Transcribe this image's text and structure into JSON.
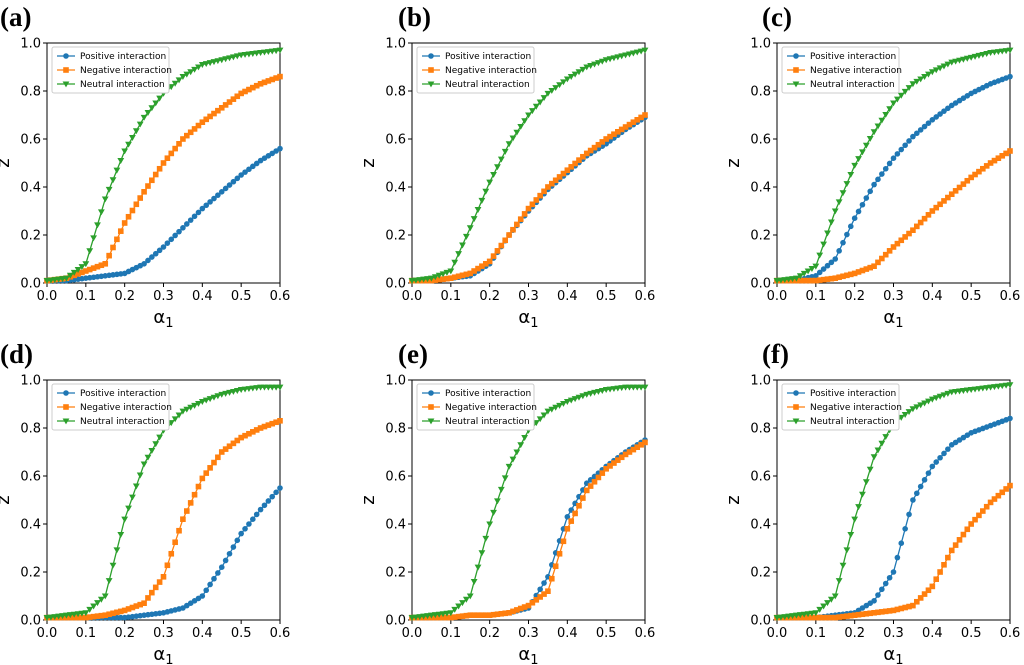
{
  "chart_data": [
    {
      "panel_label": "(a)",
      "type": "line",
      "xlabel_base": "α",
      "xlabel_sub": "1",
      "ylabel": "z",
      "xlim": [
        0,
        0.6
      ],
      "ylim": [
        0,
        1.0
      ],
      "x_ticks": [
        "0.0",
        "0.1",
        "0.2",
        "0.3",
        "0.4",
        "0.5",
        "0.6"
      ],
      "y_ticks": [
        "0.0",
        "0.2",
        "0.4",
        "0.6",
        "0.8",
        "1.0"
      ],
      "legend_position": "upper-left",
      "x": [
        0.0,
        0.05,
        0.1,
        0.15,
        0.2,
        0.25,
        0.3,
        0.35,
        0.4,
        0.45,
        0.5,
        0.55,
        0.6
      ],
      "series": [
        {
          "name": "Positive interaction",
          "color": "#1f77b4",
          "marker": "circle",
          "values": [
            0.01,
            0.01,
            0.02,
            0.03,
            0.04,
            0.08,
            0.15,
            0.23,
            0.31,
            0.38,
            0.45,
            0.51,
            0.56
          ]
        },
        {
          "name": "Negative interaction",
          "color": "#ff7f0e",
          "marker": "square",
          "values": [
            0.01,
            0.02,
            0.05,
            0.08,
            0.25,
            0.38,
            0.5,
            0.6,
            0.67,
            0.73,
            0.79,
            0.83,
            0.86
          ]
        },
        {
          "name": "Neutral interaction",
          "color": "#2ca02c",
          "marker": "triangle-down",
          "values": [
            0.01,
            0.02,
            0.08,
            0.35,
            0.55,
            0.69,
            0.79,
            0.86,
            0.91,
            0.93,
            0.95,
            0.96,
            0.97
          ]
        }
      ]
    },
    {
      "panel_label": "(b)",
      "type": "line",
      "xlabel_base": "α",
      "xlabel_sub": "1",
      "ylabel": "z",
      "xlim": [
        0,
        0.6
      ],
      "ylim": [
        0,
        1.0
      ],
      "x_ticks": [
        "0.0",
        "0.1",
        "0.2",
        "0.3",
        "0.4",
        "0.5",
        "0.6"
      ],
      "y_ticks": [
        "0.0",
        "0.2",
        "0.4",
        "0.6",
        "0.8",
        "1.0"
      ],
      "legend_position": "upper-left",
      "x": [
        0.0,
        0.05,
        0.1,
        0.15,
        0.2,
        0.25,
        0.3,
        0.35,
        0.4,
        0.45,
        0.5,
        0.55,
        0.6
      ],
      "series": [
        {
          "name": "Positive interaction",
          "color": "#1f77b4",
          "marker": "circle",
          "values": [
            0.01,
            0.01,
            0.02,
            0.03,
            0.08,
            0.2,
            0.3,
            0.39,
            0.46,
            0.53,
            0.58,
            0.64,
            0.69
          ]
        },
        {
          "name": "Negative interaction",
          "color": "#ff7f0e",
          "marker": "square",
          "values": [
            0.01,
            0.01,
            0.02,
            0.04,
            0.09,
            0.2,
            0.31,
            0.4,
            0.47,
            0.54,
            0.6,
            0.65,
            0.7
          ]
        },
        {
          "name": "Neutral interaction",
          "color": "#2ca02c",
          "marker": "triangle-down",
          "values": [
            0.01,
            0.02,
            0.05,
            0.23,
            0.42,
            0.58,
            0.7,
            0.79,
            0.85,
            0.9,
            0.93,
            0.95,
            0.97
          ]
        }
      ]
    },
    {
      "panel_label": "(c)",
      "type": "line",
      "xlabel_base": "α",
      "xlabel_sub": "1",
      "ylabel": "z",
      "xlim": [
        0,
        0.6
      ],
      "ylim": [
        0,
        1.0
      ],
      "x_ticks": [
        "0.0",
        "0.1",
        "0.2",
        "0.3",
        "0.4",
        "0.5",
        "0.6"
      ],
      "y_ticks": [
        "0.0",
        "0.2",
        "0.4",
        "0.6",
        "0.8",
        "1.0"
      ],
      "legend_position": "upper-left",
      "x": [
        0.0,
        0.05,
        0.1,
        0.15,
        0.2,
        0.25,
        0.3,
        0.35,
        0.4,
        0.45,
        0.5,
        0.55,
        0.6
      ],
      "series": [
        {
          "name": "Positive interaction",
          "color": "#1f77b4",
          "marker": "circle",
          "values": [
            0.01,
            0.01,
            0.03,
            0.1,
            0.27,
            0.41,
            0.52,
            0.61,
            0.68,
            0.74,
            0.79,
            0.83,
            0.86
          ]
        },
        {
          "name": "Negative interaction",
          "color": "#ff7f0e",
          "marker": "square",
          "values": [
            0.01,
            0.01,
            0.01,
            0.02,
            0.04,
            0.07,
            0.15,
            0.22,
            0.3,
            0.37,
            0.44,
            0.5,
            0.55
          ]
        },
        {
          "name": "Neutral interaction",
          "color": "#2ca02c",
          "marker": "triangle-down",
          "values": [
            0.01,
            0.02,
            0.07,
            0.3,
            0.49,
            0.63,
            0.75,
            0.83,
            0.88,
            0.92,
            0.94,
            0.96,
            0.97
          ]
        }
      ]
    },
    {
      "panel_label": "(d)",
      "type": "line",
      "xlabel_base": "α",
      "xlabel_sub": "1",
      "ylabel": "z",
      "xlim": [
        0,
        0.6
      ],
      "ylim": [
        0,
        1.0
      ],
      "x_ticks": [
        "0.0",
        "0.1",
        "0.2",
        "0.3",
        "0.4",
        "0.5",
        "0.6"
      ],
      "y_ticks": [
        "0.0",
        "0.2",
        "0.4",
        "0.6",
        "0.8",
        "1.0"
      ],
      "legend_position": "upper-left",
      "x": [
        0.0,
        0.05,
        0.1,
        0.15,
        0.2,
        0.25,
        0.3,
        0.35,
        0.4,
        0.45,
        0.5,
        0.55,
        0.6
      ],
      "series": [
        {
          "name": "Positive interaction",
          "color": "#1f77b4",
          "marker": "circle",
          "values": [
            0.01,
            0.01,
            0.01,
            0.01,
            0.01,
            0.02,
            0.03,
            0.05,
            0.1,
            0.22,
            0.36,
            0.46,
            0.55
          ]
        },
        {
          "name": "Negative interaction",
          "color": "#ff7f0e",
          "marker": "square",
          "values": [
            0.01,
            0.01,
            0.01,
            0.02,
            0.04,
            0.07,
            0.18,
            0.42,
            0.59,
            0.7,
            0.76,
            0.8,
            0.83
          ]
        },
        {
          "name": "Neutral interaction",
          "color": "#2ca02c",
          "marker": "triangle-down",
          "values": [
            0.01,
            0.02,
            0.03,
            0.1,
            0.42,
            0.65,
            0.79,
            0.87,
            0.91,
            0.94,
            0.96,
            0.97,
            0.97
          ]
        }
      ]
    },
    {
      "panel_label": "(e)",
      "type": "line",
      "xlabel_base": "α",
      "xlabel_sub": "1",
      "ylabel": "z",
      "xlim": [
        0,
        0.6
      ],
      "ylim": [
        0,
        1.0
      ],
      "x_ticks": [
        "0.0",
        "0.1",
        "0.2",
        "0.3",
        "0.4",
        "0.5",
        "0.6"
      ],
      "y_ticks": [
        "0.0",
        "0.2",
        "0.4",
        "0.6",
        "0.8",
        "1.0"
      ],
      "legend_position": "upper-left",
      "x": [
        0.0,
        0.05,
        0.1,
        0.15,
        0.2,
        0.25,
        0.3,
        0.35,
        0.4,
        0.45,
        0.5,
        0.55,
        0.6
      ],
      "series": [
        {
          "name": "Positive interaction",
          "color": "#1f77b4",
          "marker": "circle",
          "values": [
            0.01,
            0.01,
            0.01,
            0.02,
            0.02,
            0.03,
            0.05,
            0.18,
            0.43,
            0.57,
            0.64,
            0.7,
            0.75
          ]
        },
        {
          "name": "Negative interaction",
          "color": "#ff7f0e",
          "marker": "square",
          "values": [
            0.01,
            0.01,
            0.01,
            0.02,
            0.02,
            0.03,
            0.06,
            0.12,
            0.38,
            0.54,
            0.63,
            0.69,
            0.74
          ]
        },
        {
          "name": "Neutral interaction",
          "color": "#2ca02c",
          "marker": "triangle-down",
          "values": [
            0.01,
            0.02,
            0.03,
            0.1,
            0.4,
            0.64,
            0.79,
            0.87,
            0.91,
            0.94,
            0.96,
            0.97,
            0.97
          ]
        }
      ]
    },
    {
      "panel_label": "(f)",
      "type": "line",
      "xlabel_base": "α",
      "xlabel_sub": "1",
      "ylabel": "z",
      "xlim": [
        0,
        0.6
      ],
      "ylim": [
        0,
        1.0
      ],
      "x_ticks": [
        "0.0",
        "0.1",
        "0.2",
        "0.3",
        "0.4",
        "0.5",
        "0.6"
      ],
      "y_ticks": [
        "0.0",
        "0.2",
        "0.4",
        "0.6",
        "0.8",
        "1.0"
      ],
      "legend_position": "upper-left",
      "x": [
        0.0,
        0.05,
        0.1,
        0.15,
        0.2,
        0.25,
        0.3,
        0.35,
        0.4,
        0.45,
        0.5,
        0.55,
        0.6
      ],
      "series": [
        {
          "name": "Positive interaction",
          "color": "#1f77b4",
          "marker": "circle",
          "values": [
            0.01,
            0.01,
            0.01,
            0.02,
            0.03,
            0.08,
            0.2,
            0.5,
            0.64,
            0.73,
            0.78,
            0.81,
            0.84
          ]
        },
        {
          "name": "Negative interaction",
          "color": "#ff7f0e",
          "marker": "square",
          "values": [
            0.01,
            0.01,
            0.01,
            0.01,
            0.02,
            0.03,
            0.04,
            0.06,
            0.14,
            0.29,
            0.4,
            0.49,
            0.56
          ]
        },
        {
          "name": "Neutral interaction",
          "color": "#2ca02c",
          "marker": "triangle-down",
          "values": [
            0.01,
            0.02,
            0.03,
            0.1,
            0.42,
            0.68,
            0.82,
            0.88,
            0.92,
            0.95,
            0.96,
            0.97,
            0.98
          ]
        }
      ]
    }
  ]
}
